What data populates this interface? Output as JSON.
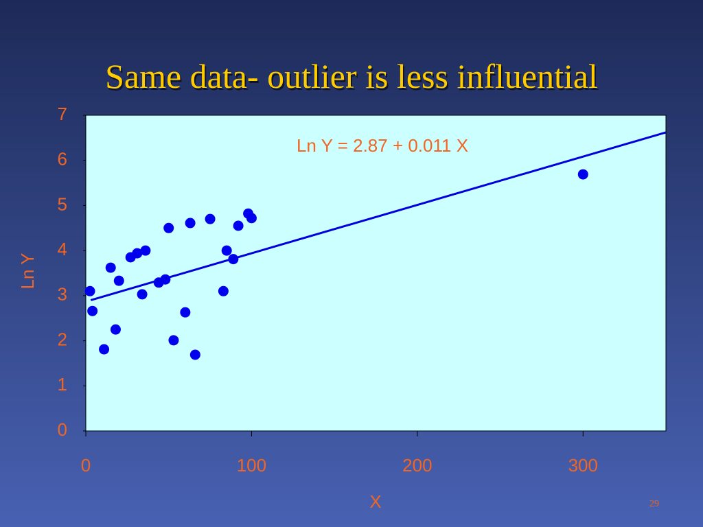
{
  "chart_data": {
    "type": "scatter",
    "title": "Same data- outlier is less influential",
    "x_label": "X",
    "y_label": "Ln Y",
    "annotation": "Ln Y = 2.87 + 0.011 X",
    "xlim": [
      0,
      350
    ],
    "xticks": [
      0,
      100,
      200,
      300
    ],
    "ylim": [
      0,
      7
    ],
    "yticks": [
      0,
      1,
      2,
      3,
      4,
      5,
      6,
      7
    ],
    "plot_background": "#ccffff",
    "series": [
      {
        "type": "scatter",
        "color": "#0000ee",
        "x": [
          2.5,
          4,
          11,
          15,
          18,
          20,
          27,
          31,
          34,
          36,
          44,
          48,
          50,
          53,
          60,
          63,
          66,
          75,
          83,
          85,
          89,
          92,
          98,
          100,
          300
        ],
        "values": [
          3.1,
          2.66,
          1.81,
          3.62,
          2.25,
          3.33,
          3.85,
          3.94,
          3.03,
          4.0,
          3.29,
          3.36,
          4.5,
          2.01,
          2.63,
          4.61,
          1.69,
          4.7,
          3.1,
          4.0,
          3.81,
          4.55,
          4.82,
          4.72,
          5.69
        ]
      },
      {
        "type": "line",
        "color": "#0000dd",
        "x": [
          3,
          350
        ],
        "values": [
          2.9,
          6.62
        ]
      }
    ]
  },
  "page_number": "29"
}
